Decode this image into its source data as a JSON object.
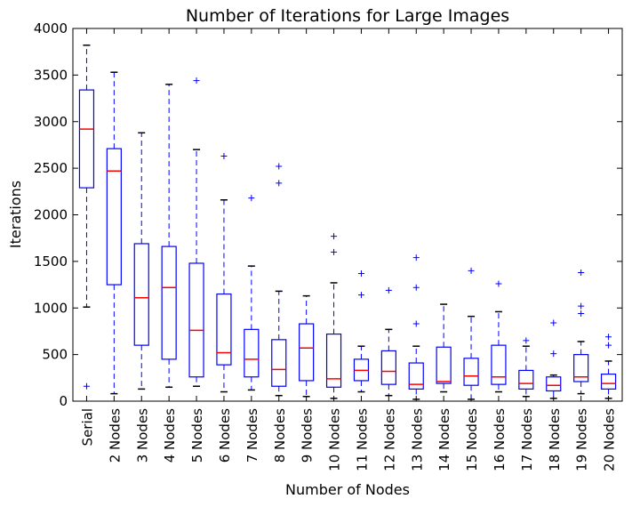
{
  "chart_data": {
    "type": "box",
    "title": "Number of Iterations for Large Images",
    "xlabel": "Number of Nodes",
    "ylabel": "Iterations",
    "ylim": [
      0,
      4000
    ],
    "yticks": [
      0,
      500,
      1000,
      1500,
      2000,
      2500,
      3000,
      3500,
      4000
    ],
    "grid": false,
    "colors": {
      "box": "#0000ff",
      "median": "#ff0000",
      "whisker": "#0000ff",
      "cap": "#000000",
      "outlier": "#0000ff"
    },
    "categories": [
      "Serial",
      "2 Nodes",
      "3 Nodes",
      "4 Nodes",
      "5 Nodes",
      "6 Nodes",
      "7 Nodes",
      "8 Nodes",
      "9 Nodes",
      "10 Nodes",
      "11 Nodes",
      "12 Nodes",
      "13 Nodes",
      "14 Nodes",
      "15 Nodes",
      "16 Nodes",
      "17 Nodes",
      "18 Nodes",
      "19 Nodes",
      "20 Nodes"
    ],
    "boxes": [
      {
        "category": "Serial",
        "whislo": 1010,
        "q1": 2290,
        "median": 2920,
        "q3": 3340,
        "whishi": 3820,
        "fliers": [
          160
        ]
      },
      {
        "category": "2 Nodes",
        "whislo": 80,
        "q1": 1250,
        "median": 2470,
        "q3": 2710,
        "whishi": 3530,
        "fliers": []
      },
      {
        "category": "3 Nodes",
        "whislo": 130,
        "q1": 600,
        "median": 1110,
        "q3": 1690,
        "whishi": 2880,
        "fliers": []
      },
      {
        "category": "4 Nodes",
        "whislo": 150,
        "q1": 450,
        "median": 1220,
        "q3": 1660,
        "whishi": 3400,
        "fliers": []
      },
      {
        "category": "5 Nodes",
        "whislo": 160,
        "q1": 260,
        "median": 760,
        "q3": 1480,
        "whishi": 2700,
        "fliers": [
          3440
        ]
      },
      {
        "category": "6 Nodes",
        "whislo": 100,
        "q1": 390,
        "median": 520,
        "q3": 1150,
        "whishi": 2160,
        "fliers": [
          2630
        ]
      },
      {
        "category": "7 Nodes",
        "whislo": 120,
        "q1": 260,
        "median": 450,
        "q3": 770,
        "whishi": 1450,
        "fliers": [
          2180
        ]
      },
      {
        "category": "8 Nodes",
        "whislo": 60,
        "q1": 160,
        "median": 340,
        "q3": 660,
        "whishi": 1180,
        "fliers": [
          2340,
          2520
        ]
      },
      {
        "category": "9 Nodes",
        "whislo": 50,
        "q1": 220,
        "median": 570,
        "q3": 830,
        "whishi": 1130,
        "fliers": []
      },
      {
        "category": "10 Nodes",
        "whislo": 30,
        "q1": 150,
        "median": 240,
        "q3": 720,
        "whishi": 1270,
        "fliers": [
          1600,
          1770
        ]
      },
      {
        "category": "11 Nodes",
        "whislo": 100,
        "q1": 220,
        "median": 330,
        "q3": 450,
        "whishi": 590,
        "fliers": [
          1140,
          1370
        ]
      },
      {
        "category": "12 Nodes",
        "whislo": 60,
        "q1": 180,
        "median": 320,
        "q3": 540,
        "whishi": 770,
        "fliers": [
          1190
        ]
      },
      {
        "category": "13 Nodes",
        "whislo": 20,
        "q1": 130,
        "median": 180,
        "q3": 410,
        "whishi": 590,
        "fliers": [
          830,
          1220,
          1540
        ]
      },
      {
        "category": "14 Nodes",
        "whislo": 100,
        "q1": 190,
        "median": 210,
        "q3": 580,
        "whishi": 1040,
        "fliers": []
      },
      {
        "category": "15 Nodes",
        "whislo": 20,
        "q1": 170,
        "median": 270,
        "q3": 460,
        "whishi": 910,
        "fliers": [
          1400
        ]
      },
      {
        "category": "16 Nodes",
        "whislo": 100,
        "q1": 180,
        "median": 260,
        "q3": 600,
        "whishi": 960,
        "fliers": [
          1260
        ]
      },
      {
        "category": "17 Nodes",
        "whislo": 50,
        "q1": 130,
        "median": 190,
        "q3": 330,
        "whishi": 590,
        "fliers": [
          650
        ]
      },
      {
        "category": "18 Nodes",
        "whislo": 30,
        "q1": 110,
        "median": 170,
        "q3": 260,
        "whishi": 280,
        "fliers": [
          510,
          840
        ]
      },
      {
        "category": "19 Nodes",
        "whislo": 80,
        "q1": 210,
        "median": 260,
        "q3": 500,
        "whishi": 640,
        "fliers": [
          940,
          1020,
          1380
        ]
      },
      {
        "category": "20 Nodes",
        "whislo": 30,
        "q1": 130,
        "median": 190,
        "q3": 290,
        "whishi": 430,
        "fliers": [
          600,
          690
        ]
      }
    ]
  }
}
